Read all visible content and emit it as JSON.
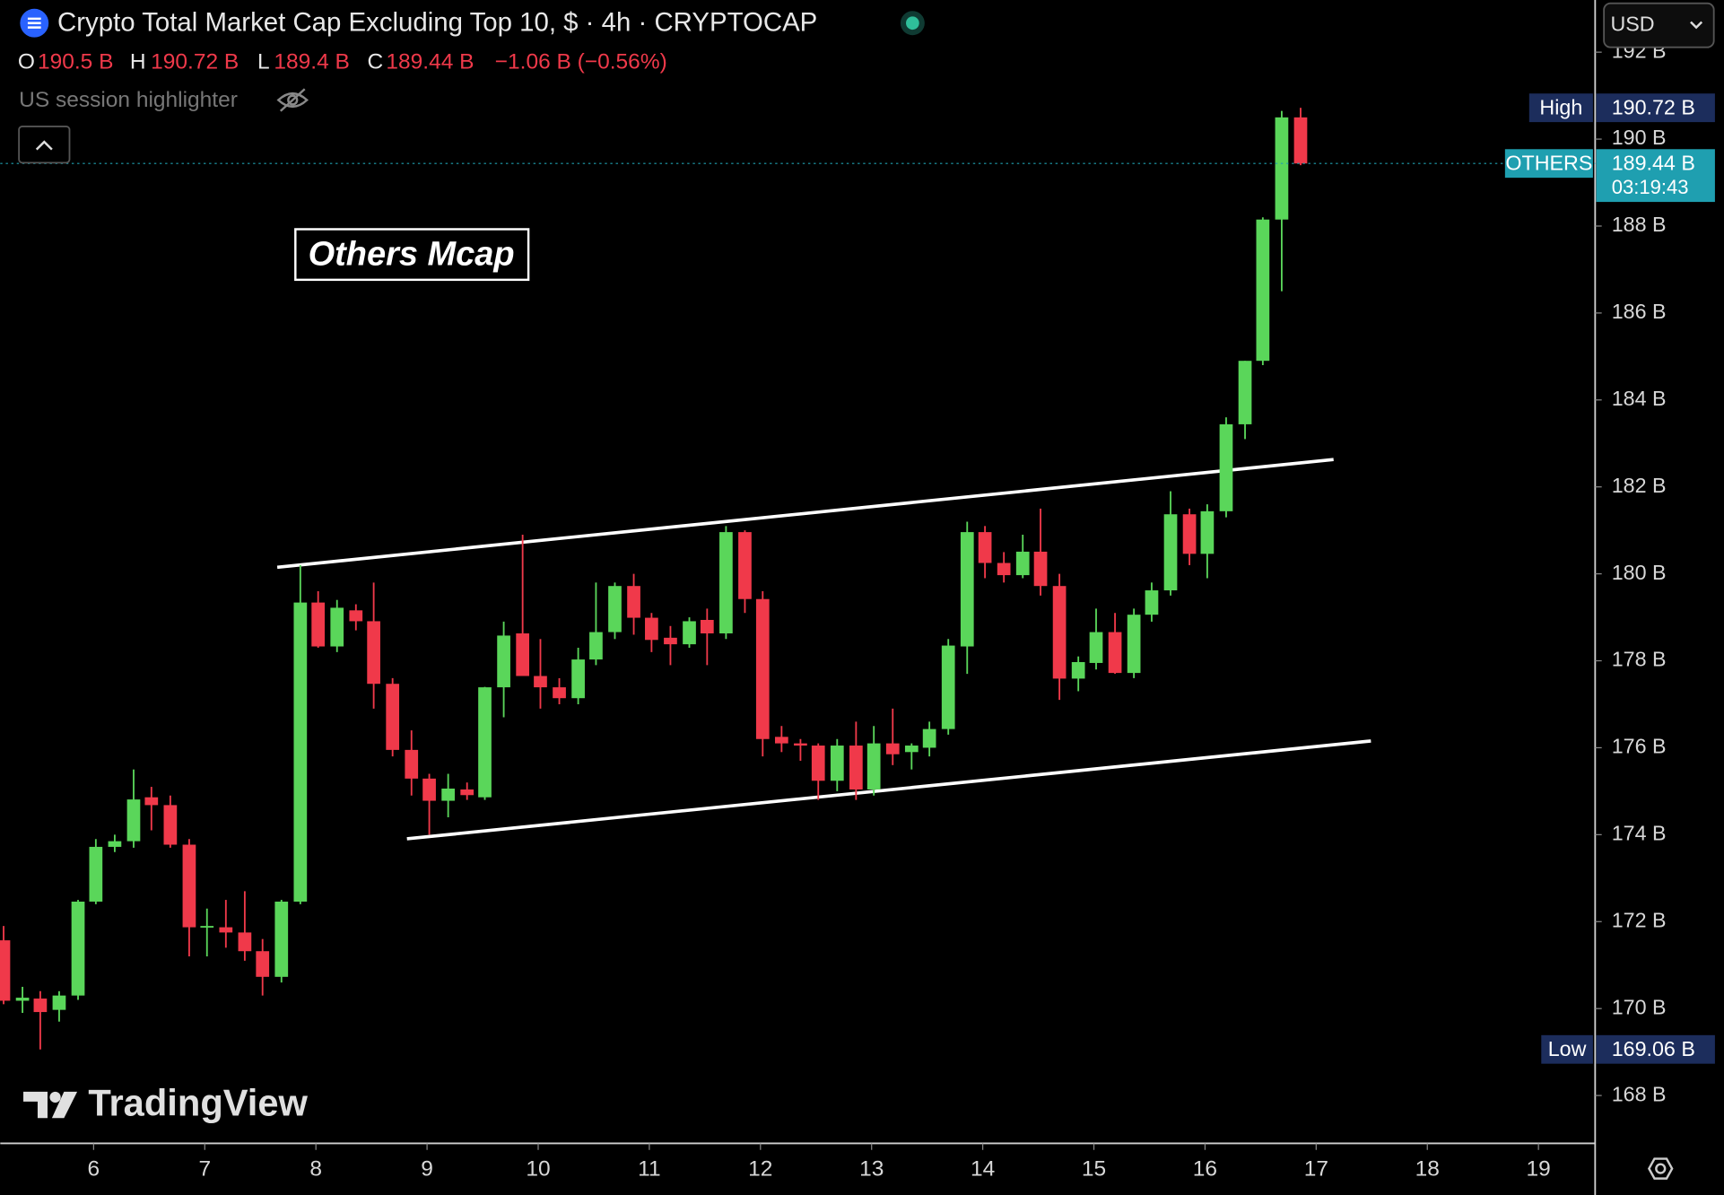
{
  "chart_data": {
    "type": "candlestick",
    "title": "Crypto Total Market Cap Excluding Top 10, $ · 4h · CRYPTOCAP",
    "header": {
      "open_label": "O",
      "open": "190.5 B",
      "high_label": "H",
      "high": "190.72 B",
      "low_label": "L",
      "low": "189.4 B",
      "close_label": "C",
      "close": "189.44 B",
      "change": "−1.06 B (−0.56%)",
      "indicator": "US session highlighter"
    },
    "annotation": "Others Mcap",
    "currency": "USD",
    "watermark": "TradingView",
    "up_color": "#5ad65a",
    "down_color": "#f0394a",
    "x": [
      5.19,
      5.36,
      5.52,
      5.69,
      5.86,
      6.02,
      6.19,
      6.36,
      6.52,
      6.69,
      6.86,
      7.02,
      7.19,
      7.36,
      7.52,
      7.69,
      7.86,
      8.02,
      8.19,
      8.36,
      8.52,
      8.69,
      8.86,
      9.02,
      9.19,
      9.36,
      9.52,
      9.69,
      9.86,
      10.02,
      10.19,
      10.36,
      10.52,
      10.69,
      10.86,
      11.02,
      11.19,
      11.36,
      11.52,
      11.69,
      11.86,
      12.02,
      12.19,
      12.36,
      12.52,
      12.69,
      12.86,
      13.02,
      13.19,
      13.36,
      13.52,
      13.69,
      13.86,
      14.02,
      14.19,
      14.36,
      14.52,
      14.69,
      14.86,
      15.02,
      15.19,
      15.36,
      15.52,
      15.69,
      15.86,
      16.02,
      16.19,
      16.36,
      16.52,
      16.69,
      16.86
    ],
    "open": [
      171.57,
      170.18,
      170.23,
      169.97,
      170.3,
      172.46,
      173.72,
      173.85,
      174.86,
      174.68,
      173.77,
      171.87,
      171.87,
      171.75,
      171.32,
      170.73,
      172.46,
      179.34,
      178.33,
      179.16,
      178.91,
      177.47,
      175.95,
      175.29,
      174.78,
      175.04,
      174.86,
      177.39,
      178.63,
      177.65,
      177.39,
      177.14,
      178.03,
      178.66,
      179.72,
      178.99,
      178.53,
      178.38,
      178.94,
      178.63,
      180.96,
      179.42,
      176.25,
      176.1,
      176.05,
      175.24,
      176.05,
      175.04,
      176.1,
      175.9,
      176.0,
      176.43,
      178.33,
      180.96,
      180.25,
      179.97,
      180.51,
      179.72,
      177.59,
      177.95,
      178.66,
      177.72,
      179.06,
      179.62,
      181.37,
      180.46,
      181.44,
      183.44,
      184.9,
      188.15,
      190.5
    ],
    "high": [
      171.9,
      170.5,
      170.4,
      170.4,
      172.5,
      173.9,
      174.0,
      175.5,
      175.1,
      174.9,
      173.9,
      172.3,
      172.5,
      172.7,
      171.6,
      172.5,
      180.2,
      179.6,
      179.4,
      179.3,
      179.8,
      177.6,
      176.4,
      175.4,
      175.4,
      175.2,
      177.4,
      178.9,
      180.9,
      178.5,
      177.6,
      178.3,
      179.8,
      179.8,
      180.0,
      179.1,
      178.8,
      179.0,
      179.2,
      181.1,
      181.0,
      179.6,
      176.5,
      176.2,
      176.1,
      176.2,
      176.6,
      176.5,
      176.9,
      176.1,
      176.6,
      178.5,
      181.2,
      181.1,
      180.5,
      180.9,
      181.5,
      180.0,
      178.1,
      179.2,
      179.1,
      179.2,
      179.8,
      181.9,
      181.5,
      181.6,
      183.6,
      184.9,
      188.2,
      190.65,
      190.72
    ],
    "low": [
      170.1,
      169.9,
      169.06,
      169.7,
      170.2,
      172.4,
      173.6,
      173.7,
      174.1,
      173.7,
      171.2,
      171.2,
      171.4,
      171.1,
      170.3,
      170.6,
      172.4,
      178.3,
      178.2,
      178.7,
      176.9,
      175.8,
      174.9,
      174.0,
      174.4,
      174.8,
      174.8,
      176.7,
      177.9,
      176.9,
      177.0,
      177.0,
      177.9,
      178.5,
      178.6,
      178.2,
      177.9,
      178.3,
      177.9,
      178.5,
      179.1,
      175.8,
      175.9,
      175.7,
      174.8,
      175.0,
      174.8,
      174.9,
      175.6,
      175.5,
      175.8,
      176.3,
      177.7,
      179.9,
      179.8,
      179.9,
      179.5,
      177.1,
      177.3,
      177.8,
      177.7,
      177.6,
      178.9,
      179.5,
      180.2,
      179.9,
      181.3,
      183.1,
      184.8,
      186.5,
      189.4
    ],
    "close": [
      170.18,
      170.25,
      169.92,
      170.3,
      172.46,
      173.72,
      173.85,
      174.81,
      174.68,
      173.77,
      171.87,
      171.9,
      171.75,
      171.32,
      170.73,
      172.46,
      179.34,
      178.33,
      179.22,
      178.91,
      177.47,
      175.95,
      175.29,
      174.78,
      175.06,
      174.91,
      177.39,
      178.58,
      177.65,
      177.39,
      177.14,
      178.03,
      178.66,
      179.72,
      178.99,
      178.48,
      178.38,
      178.91,
      178.63,
      180.96,
      179.42,
      176.2,
      176.1,
      176.05,
      175.24,
      176.05,
      175.04,
      176.1,
      175.85,
      176.05,
      176.43,
      178.35,
      180.96,
      180.25,
      179.97,
      180.51,
      179.72,
      177.59,
      177.97,
      178.66,
      177.72,
      179.06,
      179.62,
      181.37,
      180.46,
      181.44,
      183.44,
      184.9,
      188.15,
      190.5,
      189.44
    ],
    "xlim": [
      5.16,
      19.51
    ],
    "xticks": [
      6,
      7,
      8,
      9,
      10,
      11,
      12,
      13,
      14,
      15,
      16,
      17,
      18,
      19
    ],
    "ylim": [
      166.9,
      193.2
    ],
    "yticks": [
      {
        "value": 168,
        "label": "168 B"
      },
      {
        "value": 170,
        "label": "170 B"
      },
      {
        "value": 172,
        "label": "172 B"
      },
      {
        "value": 174,
        "label": "174 B"
      },
      {
        "value": 176,
        "label": "176 B"
      },
      {
        "value": 178,
        "label": "178 B"
      },
      {
        "value": 180,
        "label": "180 B"
      },
      {
        "value": 182,
        "label": "182 B"
      },
      {
        "value": 184,
        "label": "184 B"
      },
      {
        "value": 186,
        "label": "186 B"
      },
      {
        "value": 188,
        "label": "188 B"
      },
      {
        "value": 190,
        "label": "190 B"
      },
      {
        "value": 192,
        "label": "192 B"
      }
    ],
    "price_labels": [
      {
        "name": "High",
        "value": 190.72,
        "label": "190.72 B",
        "color": "#1c2d5c"
      },
      {
        "name": "OTHERS",
        "value": 189.44,
        "label": "189.44 B",
        "countdown": "03:19:43",
        "color": "#1f9fb0"
      },
      {
        "name": "Low",
        "value": 169.06,
        "label": "169.06 B",
        "color": "#1c2d5c"
      }
    ]
  }
}
